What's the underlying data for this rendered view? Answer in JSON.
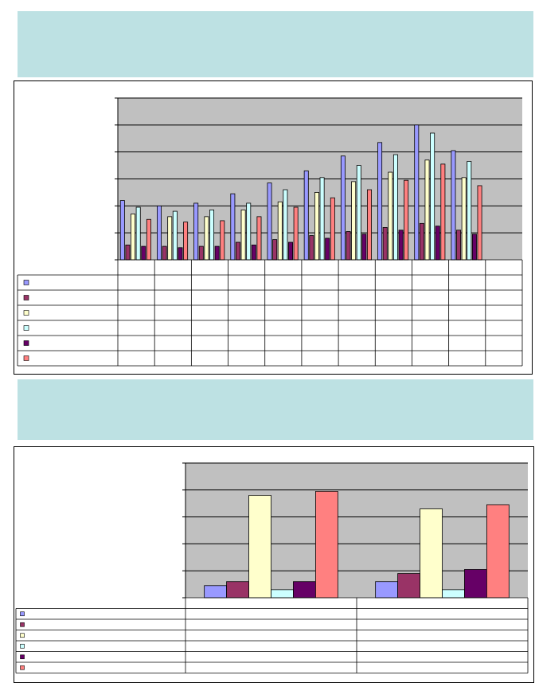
{
  "colors": {
    "banner": "#bde1e3",
    "plot_background": "#c0c0c0",
    "series": [
      "#9999ff",
      "#993366",
      "#ffffcc",
      "#ccffff",
      "#660066",
      "#ff8080"
    ]
  },
  "chart_data": [
    {
      "type": "bar",
      "title": "",
      "xlabel": "",
      "ylabel": "",
      "ylim": [
        0,
        6
      ],
      "grid": true,
      "legend_placement": "data-table-left",
      "categories": [
        "",
        "",
        "",
        "",
        "",
        "",
        "",
        "",
        "",
        "",
        ""
      ],
      "series": [
        {
          "values": [
            2.2,
            2.0,
            2.1,
            2.45,
            2.85,
            3.3,
            3.85,
            4.35,
            5.0,
            4.05,
            null
          ]
        },
        {
          "values": [
            0.55,
            0.5,
            0.5,
            0.65,
            0.75,
            0.9,
            1.05,
            1.2,
            1.35,
            1.1,
            null
          ]
        },
        {
          "values": [
            1.7,
            1.6,
            1.6,
            1.85,
            2.15,
            2.5,
            2.9,
            3.25,
            3.7,
            3.05,
            null
          ]
        },
        {
          "values": [
            1.95,
            1.8,
            1.85,
            2.1,
            2.6,
            3.05,
            3.5,
            3.9,
            4.7,
            3.65,
            null
          ]
        },
        {
          "values": [
            0.5,
            0.45,
            0.5,
            0.55,
            0.65,
            0.8,
            0.95,
            1.1,
            1.25,
            0.95,
            null
          ]
        },
        {
          "values": [
            1.5,
            1.4,
            1.45,
            1.6,
            1.95,
            2.3,
            2.6,
            2.95,
            3.55,
            2.75,
            null
          ]
        }
      ]
    },
    {
      "type": "bar",
      "title": "",
      "xlabel": "",
      "ylabel": "",
      "ylim": [
        0,
        5
      ],
      "grid": true,
      "legend_placement": "data-table-left",
      "categories": [
        "",
        ""
      ],
      "series": [
        {
          "values": [
            0.45,
            0.6
          ]
        },
        {
          "values": [
            0.6,
            0.9
          ]
        },
        {
          "values": [
            3.8,
            3.3
          ]
        },
        {
          "values": [
            0.3,
            0.3
          ]
        },
        {
          "values": [
            0.6,
            1.05
          ]
        },
        {
          "values": [
            3.95,
            3.45
          ]
        }
      ]
    }
  ]
}
